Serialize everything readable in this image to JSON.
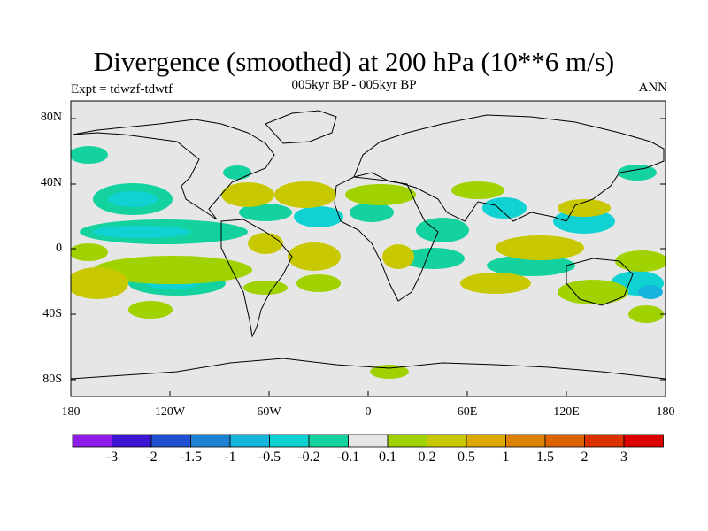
{
  "plot": {
    "title": "Divergence (smoothed) at 200 hPa (10**6 m/s)",
    "subtitle": "005kyr BP - 005kyr BP",
    "experiment": "Expt = tdwzf-tdwtf",
    "season": "ANN"
  },
  "axes": {
    "lat_labels": [
      "80N",
      "40N",
      "0",
      "40S",
      "80S"
    ],
    "lon_labels": [
      "180",
      "120W",
      "60W",
      "0",
      "60E",
      "120E",
      "180"
    ]
  },
  "colorbar": {
    "colors": [
      "#8c1ce6",
      "#3c14d2",
      "#1e50d2",
      "#1e82d2",
      "#16b4dc",
      "#10d2d2",
      "#14d2a0",
      "#e6e6e6",
      "#a0d200",
      "#c8c800",
      "#dcaa00",
      "#dc8200",
      "#dc6400",
      "#dc3200",
      "#dc0000"
    ],
    "labels": [
      "-3",
      "-2",
      "-1.5",
      "-1",
      "-0.5",
      "-0.2",
      "-0.1",
      "0.1",
      "0.2",
      "0.5",
      "1",
      "1.5",
      "2",
      "3"
    ]
  },
  "map": {
    "background": "#e6e6e6",
    "field_colors": {
      "neg_light": "#14d2a0",
      "neg_mid": "#10d2d2",
      "neg_strong": "#16b4dc",
      "pos_light": "#a0d200",
      "pos_mid": "#c8c800"
    }
  }
}
